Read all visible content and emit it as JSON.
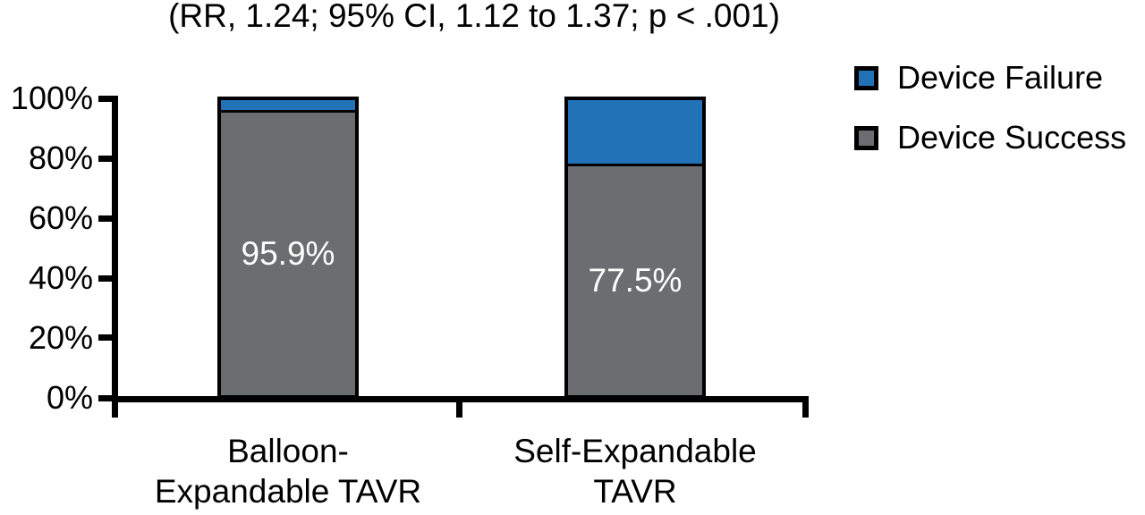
{
  "chart_data": {
    "type": "bar",
    "stacked": true,
    "title": "(RR, 1.24; 95% CI, 1.12 to 1.37; p < .001)",
    "categories": [
      [
        "Balloon-",
        "Expandable TAVR"
      ],
      [
        "Self-Expandable",
        "TAVR"
      ]
    ],
    "series": [
      {
        "name": "Device Failure",
        "color": "#2272b8",
        "values": [
          4.1,
          22.5
        ]
      },
      {
        "name": "Device Success",
        "color": "#6b6d70",
        "values": [
          95.9,
          77.5
        ]
      }
    ],
    "bar_value_labels": [
      "95.9%",
      "77.5%"
    ],
    "value_label_color": "#ffffff",
    "y_ticks": [
      "100%",
      "80%",
      "60%",
      "40%",
      "20%",
      "0%"
    ],
    "ylim": [
      0,
      100
    ],
    "xlabel": "",
    "ylabel": "",
    "grid": false,
    "axis_color": "#000000",
    "legend_position": "top-right",
    "legend": [
      {
        "label": "Device Failure",
        "color": "#2272b8"
      },
      {
        "label": "Device Success",
        "color": "#6b6d70"
      }
    ]
  }
}
